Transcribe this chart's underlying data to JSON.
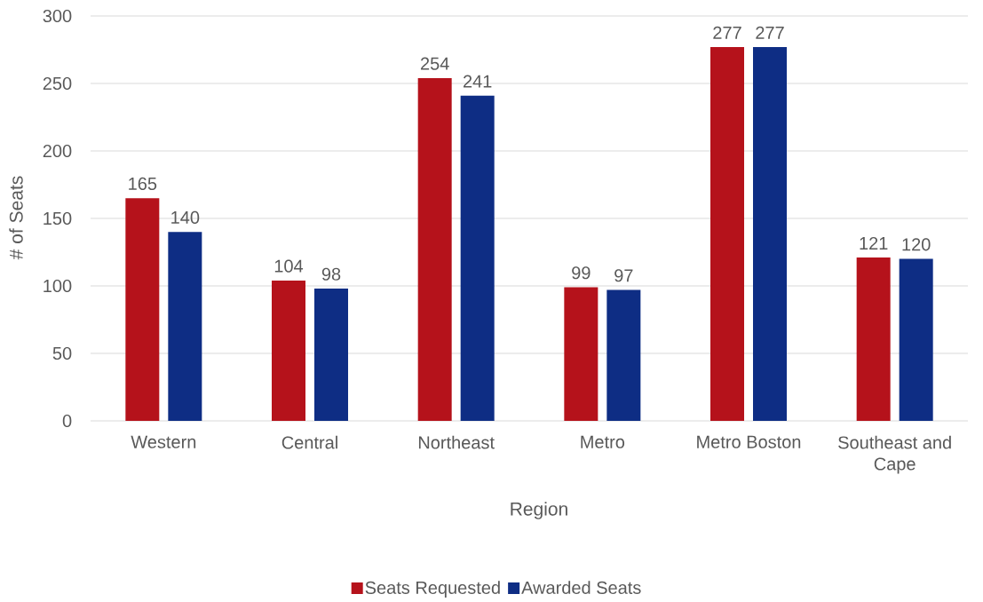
{
  "chart_data": {
    "type": "bar",
    "xlabel": "Region",
    "ylabel": "# of Seats",
    "categories": [
      "Western",
      "Central",
      "Northeast",
      "Metro",
      "Metro Boston",
      "Southeast and Cape"
    ],
    "series": [
      {
        "name": "Seats Requested",
        "color": "#b5121b",
        "values": [
          165,
          104,
          254,
          99,
          277,
          121
        ]
      },
      {
        "name": "Awarded Seats",
        "color": "#0e2d84",
        "values": [
          140,
          98,
          241,
          97,
          277,
          120
        ]
      }
    ],
    "ylim": [
      0,
      300
    ],
    "yticks": [
      0,
      50,
      100,
      150,
      200,
      250,
      300
    ],
    "grid": "y",
    "legend": "bottom",
    "data_labels": true
  }
}
